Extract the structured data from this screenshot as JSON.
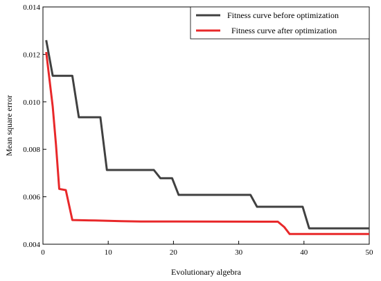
{
  "chart_data": {
    "type": "line",
    "title": "",
    "xlabel": "Evolutionary algebra",
    "ylabel": "Mean square error",
    "xlim": [
      0,
      50
    ],
    "ylim": [
      0.004,
      0.014
    ],
    "xticks": [
      0,
      10,
      20,
      30,
      40,
      50
    ],
    "xtick_labels": [
      "0",
      "10",
      "20",
      "30",
      "40",
      "50"
    ],
    "yticks": [
      0.004,
      0.006,
      0.008,
      0.01,
      0.012,
      0.014
    ],
    "ytick_labels": [
      "0.004",
      "0.006",
      "0.008",
      "0.010",
      "0.012",
      "0.014"
    ],
    "grid": false,
    "legend_position": "top-right",
    "series": [
      {
        "name": "Fitness curve before optimization",
        "color": "#404040",
        "points": [
          [
            0.5,
            0.0126
          ],
          [
            1.5,
            0.0111
          ],
          [
            4.5,
            0.0111
          ],
          [
            5.5,
            0.00935
          ],
          [
            8.8,
            0.00935
          ],
          [
            9.8,
            0.00713
          ],
          [
            17.0,
            0.00713
          ],
          [
            18.0,
            0.00678
          ],
          [
            19.8,
            0.00678
          ],
          [
            20.8,
            0.00608
          ],
          [
            31.8,
            0.00608
          ],
          [
            32.8,
            0.00558
          ],
          [
            39.8,
            0.00558
          ],
          [
            40.8,
            0.00467
          ],
          [
            50,
            0.00467
          ]
        ]
      },
      {
        "name": "Fitness curve after optimization",
        "color": "#e8282a",
        "points": [
          [
            0.5,
            0.0121
          ],
          [
            1.5,
            0.0098
          ],
          [
            2.0,
            0.0082
          ],
          [
            2.5,
            0.00633
          ],
          [
            3.5,
            0.00628
          ],
          [
            4.5,
            0.00502
          ],
          [
            8.0,
            0.005
          ],
          [
            12.0,
            0.00497
          ],
          [
            15.0,
            0.00496
          ],
          [
            36.0,
            0.00495
          ],
          [
            37.0,
            0.00472
          ],
          [
            37.8,
            0.00443
          ],
          [
            50,
            0.00443
          ]
        ]
      }
    ]
  }
}
